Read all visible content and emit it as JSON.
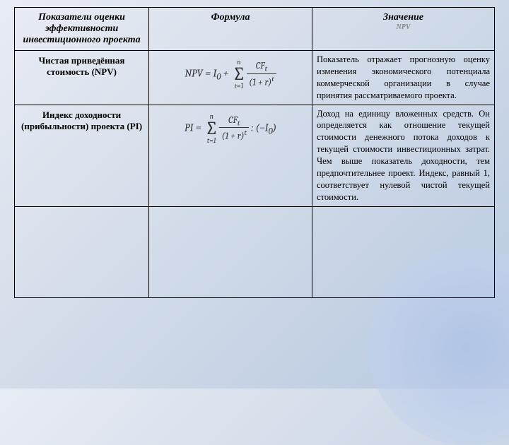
{
  "table": {
    "headers": {
      "col1": "Показатели оценки эффективности инвестиционного проекта",
      "col2": "Формула",
      "col3": "Значение"
    },
    "npv_label": "NPV",
    "rows": [
      {
        "label": "Чистая приведённая стоимость (NPV)",
        "formula": {
          "lhs": "NPV = I",
          "sub0": "0",
          "plus": " + ",
          "sum_top": "n",
          "sum_bot": "t=1",
          "num": "CF",
          "num_sub": "t",
          "den_base": "(1 + r)",
          "den_exp": "t"
        },
        "desc": "Показатель отражает прогнозную оценку изменения экономического потенциала коммерческой организации в случае принятия рассматриваемого проекта."
      },
      {
        "label": "Индекс доходности (прибыльности) проекта (PI)",
        "formula": {
          "lhs": "PI = ",
          "sum_top": "n",
          "sum_bot": "t=1",
          "num": "CF",
          "num_sub": "t",
          "den_base": "(1 + r)",
          "den_exp": "t",
          "tail": " : (−I",
          "tail_sub": "0",
          "tail_end": ")"
        },
        "desc": "Доход на единицу вложенных средств. Он определяется как отношение текущей стоимости денежного потока доходов к текущей стоимости инвестиционных затрат. Чем выше показатель доходности, тем предпочтительнее проект. Индекс, равный 1, соответствует нулевой чистой текущей стоимости."
      }
    ]
  },
  "style": {
    "header_fontsize": 14,
    "label_fontsize": 13,
    "desc_fontsize": 12.5,
    "formula_color": "#333",
    "border_color": "#000",
    "bg_gradient_start": "#e8ecf4",
    "bg_gradient_end": "#b8c8e0"
  }
}
